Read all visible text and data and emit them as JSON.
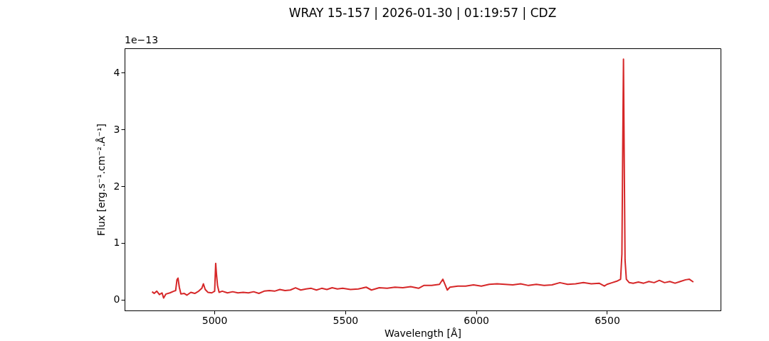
{
  "chart_data": {
    "type": "line",
    "title": "WRAY 15-157 | 2026-01-30 | 01:19:57 | CDZ",
    "xlabel": "Wavelength [Å]",
    "ylabel": "Flux [erg.s⁻¹.cm⁻².Å⁻¹]",
    "annotations": [
      "1e−13"
    ],
    "xlim": [
      4657,
      6934
    ],
    "xticks": [
      5000,
      5500,
      6000,
      6500
    ],
    "ylim": [
      -0.19,
      4.43
    ],
    "yticks": [
      0,
      1,
      2,
      3,
      4
    ],
    "grid": false,
    "line_style": "solid",
    "marker": "none",
    "series": [
      {
        "color": "#d62728",
        "x": [
          4762,
          4770,
          4780,
          4790,
          4800,
          4806,
          4815,
          4830,
          4845,
          4852,
          4857,
          4861,
          4866,
          4872,
          4885,
          4895,
          4910,
          4925,
          4940,
          4952,
          4958,
          4965,
          4975,
          4990,
          5001,
          5005,
          5008,
          5012,
          5018,
          5030,
          5050,
          5070,
          5090,
          5110,
          5130,
          5150,
          5170,
          5190,
          5210,
          5230,
          5250,
          5270,
          5290,
          5310,
          5330,
          5350,
          5370,
          5390,
          5410,
          5430,
          5450,
          5470,
          5490,
          5520,
          5550,
          5580,
          5600,
          5630,
          5660,
          5690,
          5720,
          5750,
          5780,
          5800,
          5830,
          5860,
          5873,
          5880,
          5890,
          5900,
          5930,
          5960,
          5990,
          6020,
          6050,
          6080,
          6110,
          6140,
          6170,
          6200,
          6230,
          6260,
          6290,
          6320,
          6350,
          6380,
          6410,
          6440,
          6470,
          6490,
          6500,
          6520,
          6540,
          6552,
          6557,
          6560,
          6563,
          6566,
          6569,
          6574,
          6585,
          6600,
          6620,
          6640,
          6660,
          6680,
          6700,
          6720,
          6740,
          6760,
          6780,
          6800,
          6815,
          6830
        ],
        "values": [
          0.14,
          0.11,
          0.15,
          0.09,
          0.12,
          0.03,
          0.1,
          0.12,
          0.15,
          0.16,
          0.35,
          0.38,
          0.22,
          0.1,
          0.11,
          0.08,
          0.13,
          0.11,
          0.15,
          0.2,
          0.28,
          0.18,
          0.13,
          0.12,
          0.15,
          0.64,
          0.45,
          0.25,
          0.13,
          0.15,
          0.12,
          0.14,
          0.12,
          0.13,
          0.12,
          0.14,
          0.11,
          0.15,
          0.16,
          0.15,
          0.18,
          0.16,
          0.17,
          0.21,
          0.17,
          0.19,
          0.2,
          0.17,
          0.2,
          0.18,
          0.21,
          0.19,
          0.2,
          0.18,
          0.19,
          0.22,
          0.17,
          0.21,
          0.2,
          0.22,
          0.21,
          0.23,
          0.2,
          0.25,
          0.25,
          0.27,
          0.36,
          0.28,
          0.17,
          0.22,
          0.24,
          0.24,
          0.26,
          0.24,
          0.27,
          0.28,
          0.27,
          0.26,
          0.28,
          0.25,
          0.27,
          0.25,
          0.26,
          0.3,
          0.27,
          0.28,
          0.3,
          0.28,
          0.29,
          0.24,
          0.27,
          0.3,
          0.33,
          0.36,
          0.8,
          2.6,
          4.24,
          2.4,
          0.7,
          0.36,
          0.3,
          0.29,
          0.31,
          0.29,
          0.32,
          0.3,
          0.34,
          0.3,
          0.32,
          0.29,
          0.32,
          0.35,
          0.36,
          0.31
        ]
      }
    ]
  }
}
